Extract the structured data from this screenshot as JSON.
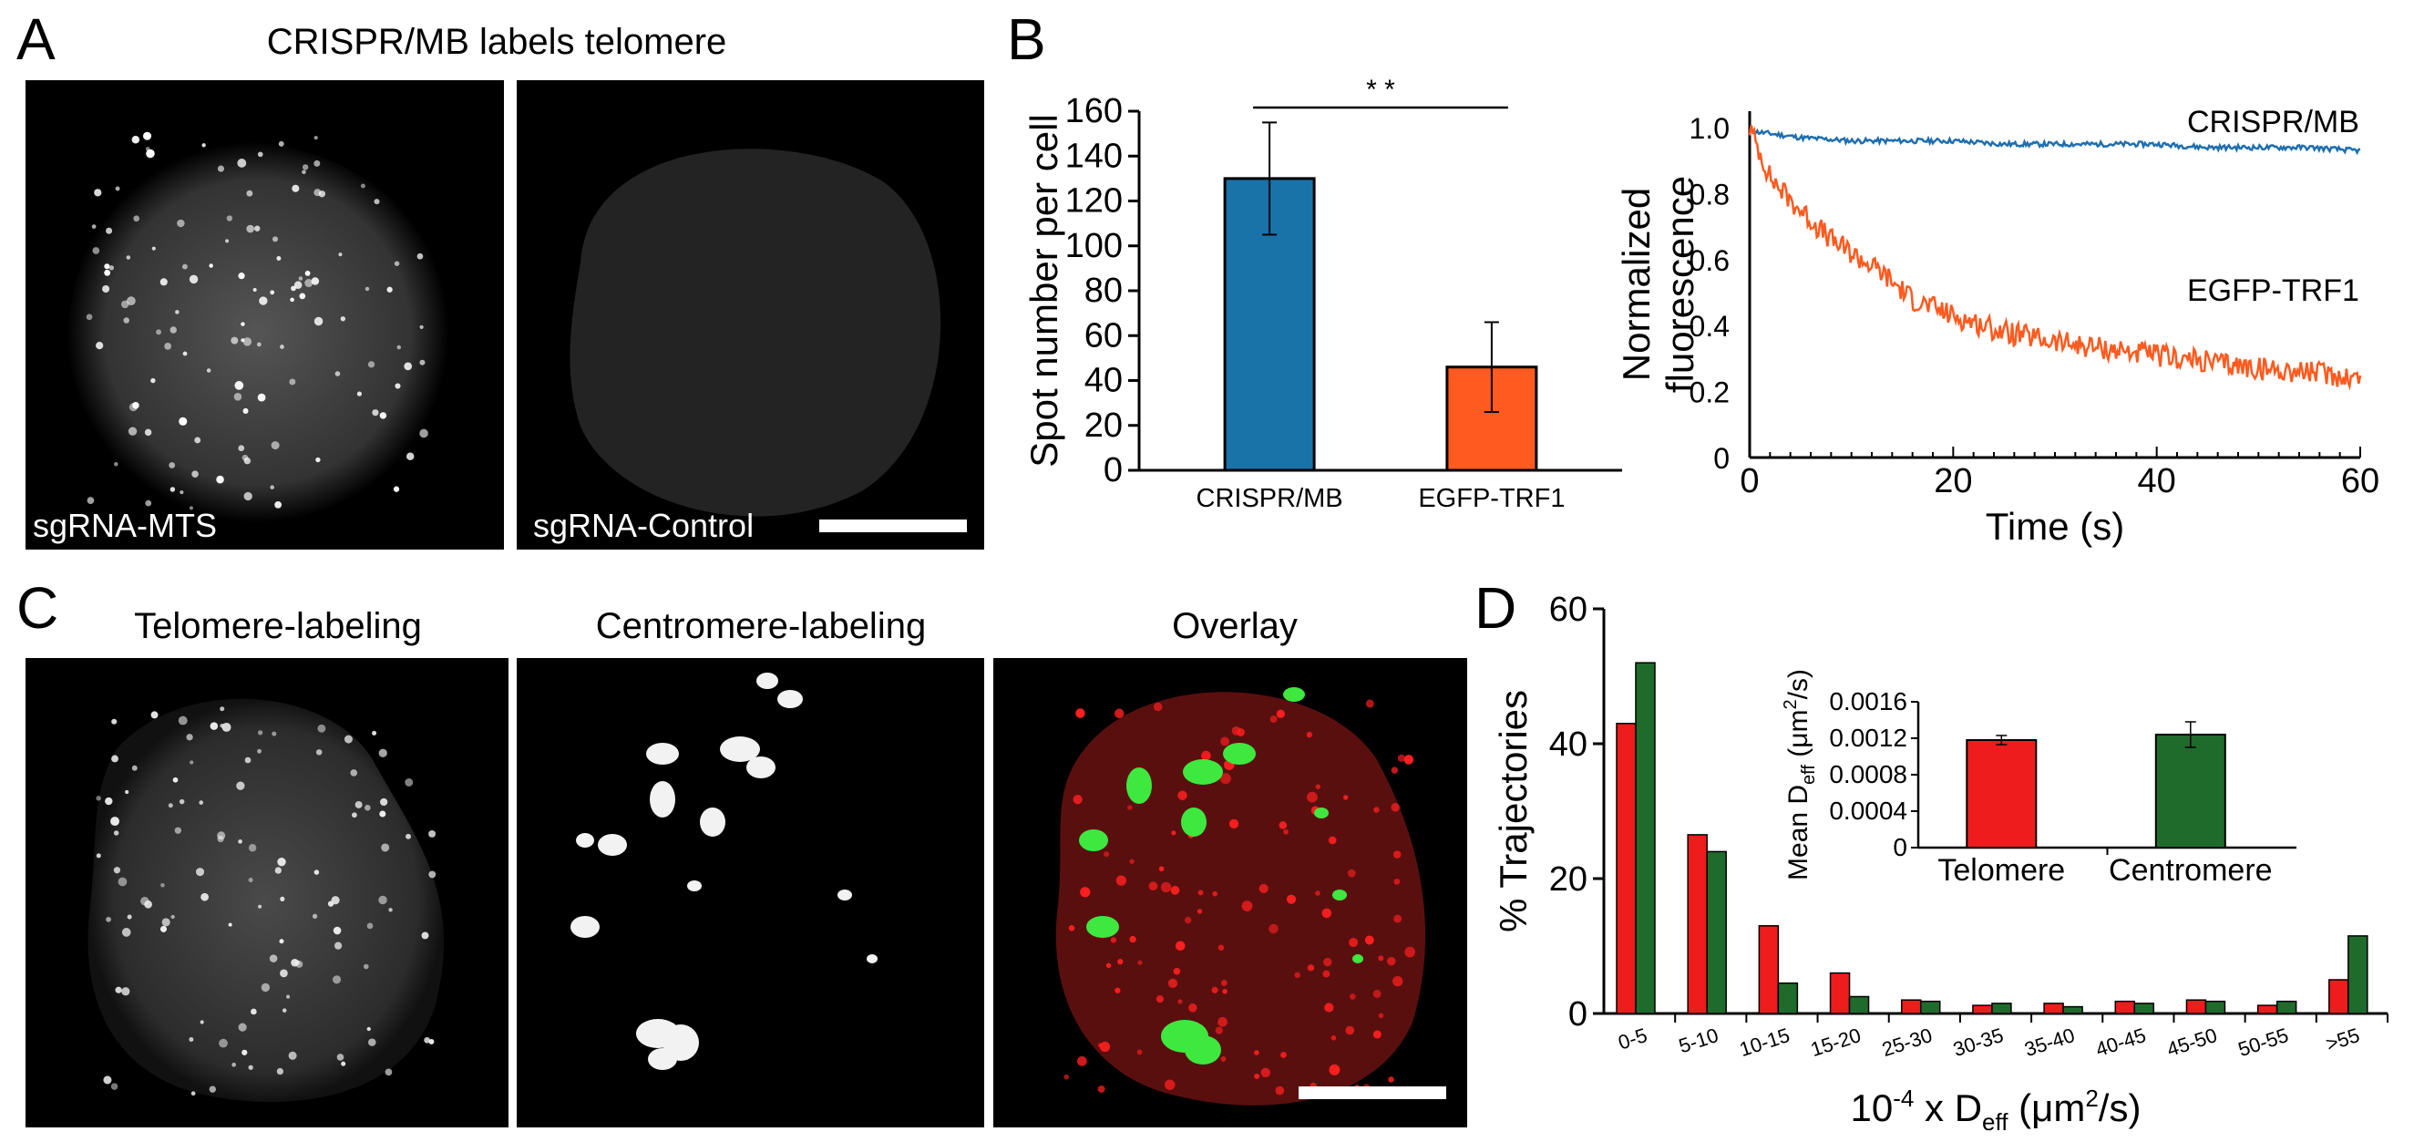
{
  "panels": {
    "a": {
      "letter": "A",
      "title": "CRISPR/MB labels telomere",
      "images": [
        {
          "label": "sgRNA-MTS"
        },
        {
          "label": "sgRNA-Control"
        }
      ]
    },
    "b": {
      "letter": "B"
    },
    "c": {
      "letter": "C",
      "images": [
        {
          "title": "Telomere-labeling"
        },
        {
          "title": "Centromere-labeling"
        },
        {
          "title": "Overlay"
        }
      ]
    },
    "d": {
      "letter": "D"
    }
  },
  "colors": {
    "blue": "#1a73a8",
    "orange": "#ff5a1f",
    "red": "#ee1c1c",
    "green": "#1f6b2b",
    "line_blue": "#1f6fb0",
    "line_orange": "#ff5a1f"
  },
  "chart_data": [
    {
      "id": "spot-bar",
      "type": "bar",
      "categories": [
        "CRISPR/MB",
        "EGFP-TRF1"
      ],
      "values": [
        130,
        46
      ],
      "errors": [
        25,
        20
      ],
      "ylabel": "Spot number per cell",
      "ylim": [
        0,
        160
      ],
      "yticks": [
        0,
        20,
        40,
        60,
        80,
        100,
        120,
        140,
        160
      ],
      "significance": "* *"
    },
    {
      "id": "photobleach-line",
      "type": "line",
      "xlabel": "Time (s)",
      "ylabel": [
        "Normalized",
        "fluorescence"
      ],
      "xlim": [
        0,
        60
      ],
      "ylim": [
        0,
        1.05
      ],
      "xticks": [
        0,
        20,
        40,
        60
      ],
      "yticks": [
        0,
        0.2,
        0.4,
        0.6,
        0.8,
        1.0
      ],
      "ytick_labels": [
        "0",
        "0.2",
        "0.4",
        "0.6",
        "0.8",
        "1.0"
      ],
      "series": [
        {
          "name": "CRISPR/MB",
          "x": [
            0,
            5,
            10,
            15,
            20,
            25,
            30,
            35,
            40,
            45,
            50,
            55,
            60
          ],
          "values": [
            0.99,
            0.97,
            0.96,
            0.96,
            0.96,
            0.95,
            0.95,
            0.95,
            0.95,
            0.94,
            0.94,
            0.94,
            0.93
          ]
        },
        {
          "name": "EGFP-TRF1",
          "x": [
            0,
            2,
            4,
            6,
            8,
            10,
            13,
            16,
            20,
            25,
            30,
            35,
            40,
            45,
            50,
            55,
            60
          ],
          "values": [
            1.0,
            0.85,
            0.78,
            0.72,
            0.66,
            0.62,
            0.56,
            0.48,
            0.43,
            0.38,
            0.35,
            0.33,
            0.31,
            0.29,
            0.27,
            0.26,
            0.24
          ]
        }
      ]
    },
    {
      "id": "deff-histogram",
      "type": "bar",
      "categories": [
        "0-5",
        "5-10",
        "10-15",
        "15-20",
        "25-30",
        "30-35",
        "35-40",
        "40-45",
        "45-50",
        "50-55",
        ">55"
      ],
      "series": [
        {
          "name": "Telomere",
          "values": [
            43,
            26.5,
            13,
            6,
            2,
            1.2,
            1.5,
            1.8,
            2,
            1.2,
            5
          ]
        },
        {
          "name": "Centromere",
          "values": [
            52,
            24,
            4.5,
            2.5,
            1.8,
            1.5,
            1,
            1.5,
            1.8,
            1.8,
            11.5
          ]
        }
      ],
      "ylabel": "% Trajectories",
      "xlabel": "10-4 x Deff (μm2/s)",
      "ylim": [
        0,
        60
      ],
      "yticks": [
        0,
        20,
        40,
        60
      ]
    },
    {
      "id": "mean-deff-inset",
      "type": "bar",
      "categories": [
        "Telomere",
        "Centromere"
      ],
      "values": [
        0.00118,
        0.00124
      ],
      "errors": [
        5e-05,
        0.00014
      ],
      "ylabel": "Mean Deff (μm2/s)",
      "ylim": [
        0,
        0.0016
      ],
      "yticks": [
        0,
        0.0004,
        0.0008,
        0.0012,
        0.0016
      ],
      "ytick_labels": [
        "0",
        "0.0004",
        "0.0008",
        "0.0012",
        "0.0016"
      ]
    }
  ]
}
